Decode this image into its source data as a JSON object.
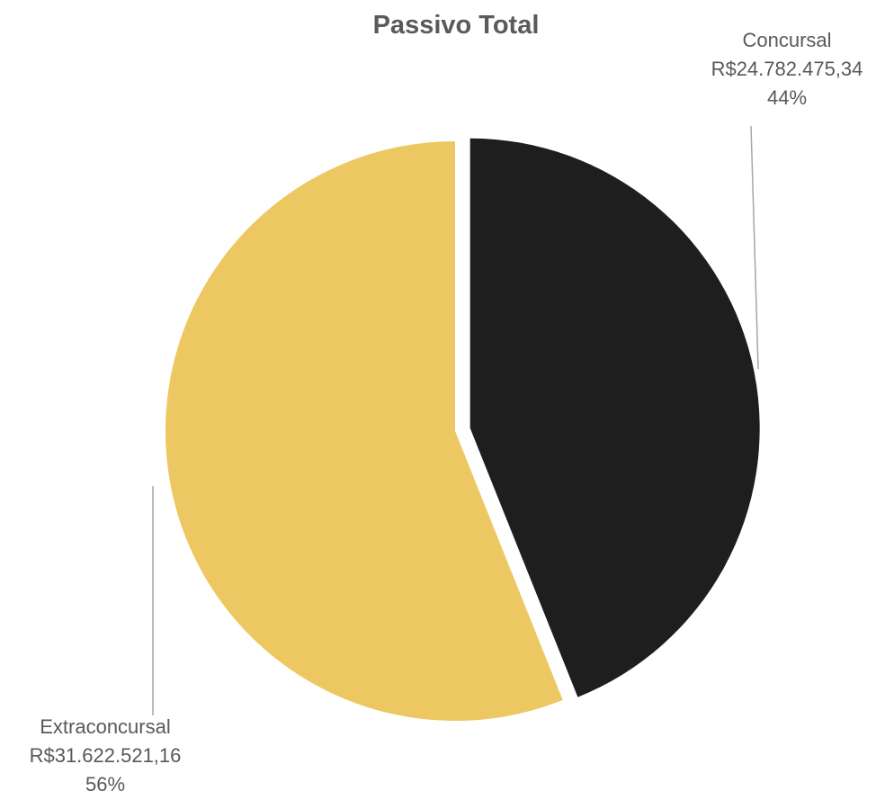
{
  "chart_data": {
    "type": "pie",
    "title": "Passivo Total",
    "slices": [
      {
        "name": "Concursal",
        "value": 24782475.34,
        "value_label": "R$24.782.475,34",
        "percent_label": "44%",
        "color": "#1e1e1e",
        "exploded": true
      },
      {
        "name": "Extraconcursal",
        "value": 31622521.16,
        "value_label": "R$31.622.521,16",
        "percent_label": "56%",
        "color": "#edc762",
        "exploded": false
      }
    ],
    "start_angle": "12 o'clock",
    "direction": "clockwise",
    "legend": "none"
  }
}
